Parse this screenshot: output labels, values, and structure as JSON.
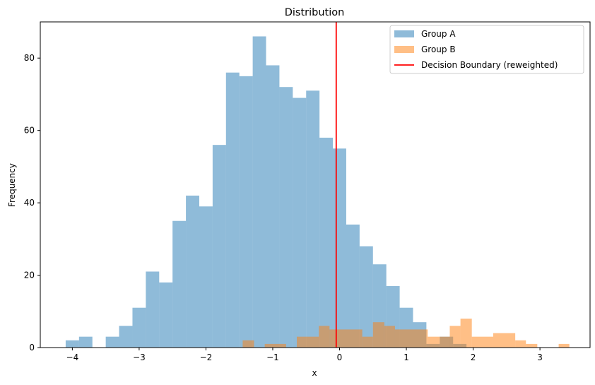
{
  "chart_data": {
    "type": "histogram",
    "title": "Distribution",
    "xlabel": "x",
    "ylabel": "Frequency",
    "xlim": [
      -4.48,
      3.75
    ],
    "ylim": [
      0,
      90
    ],
    "x_ticks": [
      -4,
      -3,
      -2,
      -1,
      0,
      1,
      2,
      3
    ],
    "x_tick_labels": [
      "−4",
      "−3",
      "−2",
      "−1",
      "0",
      "1",
      "2",
      "3"
    ],
    "y_ticks": [
      0,
      20,
      40,
      60,
      80
    ],
    "y_tick_labels": [
      "0",
      "20",
      "40",
      "60",
      "80"
    ],
    "grid": false,
    "legend_position": "top-right",
    "series": [
      {
        "name": "Group A",
        "color": "#1f77b4",
        "alpha": 0.5,
        "bin_start": -4.1,
        "bin_width": 0.2,
        "counts": [
          2,
          3,
          0,
          3,
          6,
          11,
          21,
          18,
          35,
          42,
          39,
          56,
          76,
          75,
          86,
          78,
          72,
          69,
          71,
          58,
          55,
          34,
          28,
          23,
          17,
          11,
          7,
          1,
          3,
          1
        ]
      },
      {
        "name": "Group B",
        "color": "#ff7f0e",
        "alpha": 0.5,
        "bins": [
          {
            "x0": -1.45,
            "x1": -1.28,
            "count": 2
          },
          {
            "x0": -1.12,
            "x1": -0.8,
            "count": 1
          },
          {
            "x0": -0.64,
            "x1": -0.31,
            "count": 3
          },
          {
            "x0": -0.31,
            "x1": -0.15,
            "count": 6
          },
          {
            "x0": -0.15,
            "x1": 0.34,
            "count": 5
          },
          {
            "x0": 0.34,
            "x1": 0.5,
            "count": 3
          },
          {
            "x0": 0.5,
            "x1": 0.67,
            "count": 7
          },
          {
            "x0": 0.67,
            "x1": 0.83,
            "count": 6
          },
          {
            "x0": 0.83,
            "x1": 1.32,
            "count": 5
          },
          {
            "x0": 1.32,
            "x1": 1.49,
            "count": 3
          },
          {
            "x0": 1.49,
            "x1": 1.65,
            "count": 3
          },
          {
            "x0": 1.65,
            "x1": 1.81,
            "count": 6
          },
          {
            "x0": 1.81,
            "x1": 1.98,
            "count": 8
          },
          {
            "x0": 1.98,
            "x1": 2.3,
            "count": 3
          },
          {
            "x0": 2.3,
            "x1": 2.63,
            "count": 4
          },
          {
            "x0": 2.63,
            "x1": 2.79,
            "count": 2
          },
          {
            "x0": 2.79,
            "x1": 2.96,
            "count": 1
          },
          {
            "x0": 3.28,
            "x1": 3.44,
            "count": 1
          }
        ]
      }
    ],
    "lines": [
      {
        "name": "Decision Boundary (reweighted)",
        "type": "vline",
        "x": -0.05,
        "color": "#ff0000"
      }
    ]
  }
}
